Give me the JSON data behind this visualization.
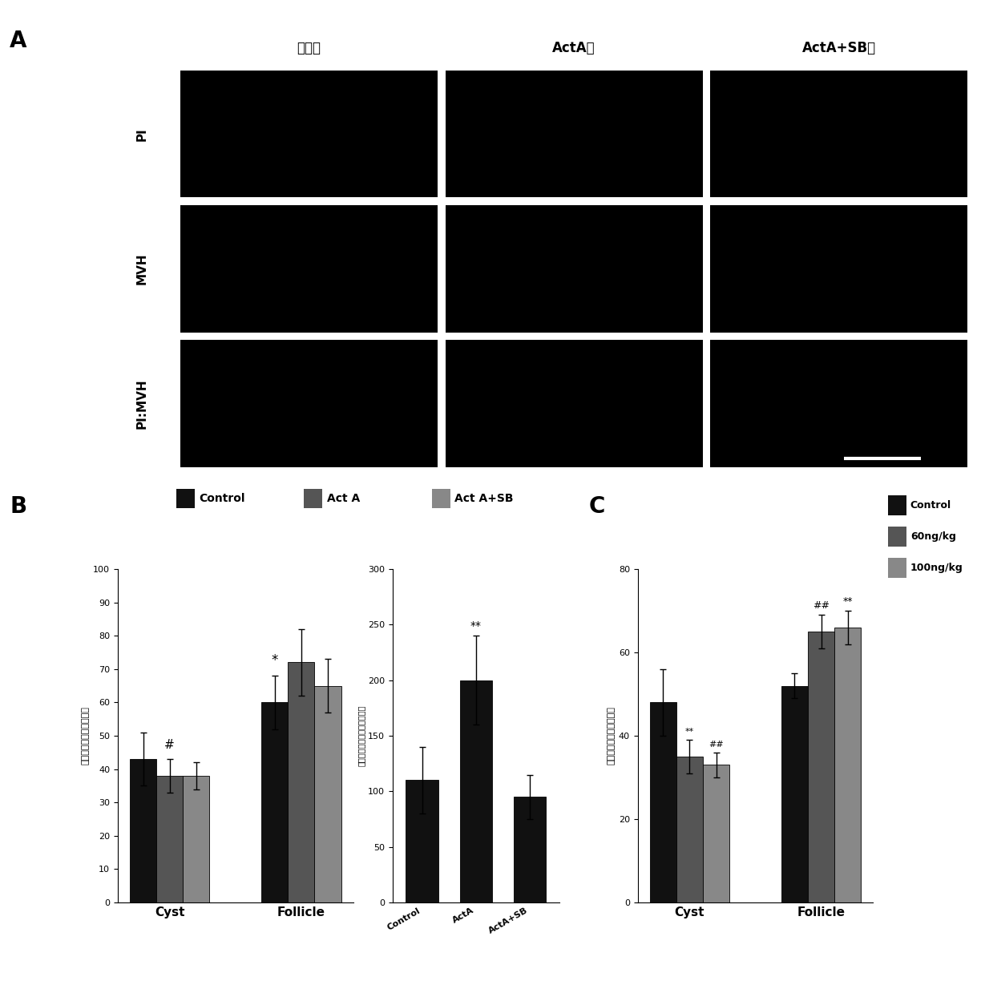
{
  "panel_A": {
    "col_labels": [
      "对照组",
      "ActA组",
      "ActA+SB组"
    ],
    "row_labels": [
      "PI",
      "MVH",
      "PI:MVH"
    ],
    "cell_color": "#000000"
  },
  "panel_B_left": {
    "groups": [
      "Cyst",
      "Follicle"
    ],
    "series": [
      "Control",
      "Act A",
      "Act A+SB"
    ],
    "series_colors": [
      "#111111",
      "#555555",
      "#888888"
    ],
    "values": [
      [
        43,
        38,
        38
      ],
      [
        60,
        72,
        65
      ]
    ],
    "errors": [
      [
        8,
        5,
        4
      ],
      [
        8,
        10,
        8
      ]
    ],
    "ylabel": "不同时间卡底德细胞比例",
    "ylim": [
      0,
      100
    ],
    "yticks": [
      0,
      10,
      20,
      30,
      40,
      50,
      60,
      70,
      80,
      90,
      100
    ]
  },
  "panel_B_middle": {
    "groups": [
      "Control",
      "ActA",
      "ActA+SB"
    ],
    "values": [
      110,
      200,
      95
    ],
    "errors": [
      30,
      40,
      20
    ],
    "ylabel": "每个器官中的卡底德细胞数目",
    "ylim": [
      0,
      300
    ],
    "yticks": [
      0,
      50,
      100,
      150,
      200,
      250,
      300
    ]
  },
  "panel_C": {
    "groups": [
      "Cyst",
      "Follicle"
    ],
    "series": [
      "Control",
      "60ng/kg",
      "100ng/kg"
    ],
    "series_colors": [
      "#111111",
      "#555555",
      "#888888"
    ],
    "values": [
      [
        48,
        35,
        33
      ],
      [
        52,
        65,
        66
      ]
    ],
    "errors": [
      [
        8,
        4,
        3
      ],
      [
        3,
        4,
        4
      ]
    ],
    "ylabel": "不同时间卡底德细胞比例",
    "ylim": [
      0,
      80
    ],
    "yticks": [
      0,
      20,
      40,
      60,
      80
    ]
  },
  "legend_B": {
    "labels": [
      "Control",
      "Act A",
      "Act A+SB"
    ],
    "colors": [
      "#111111",
      "#555555",
      "#888888"
    ]
  },
  "legend_C": {
    "labels": [
      "Control",
      "60ng/kg",
      "100ng/kg"
    ],
    "colors": [
      "#111111",
      "#555555",
      "#888888"
    ]
  }
}
